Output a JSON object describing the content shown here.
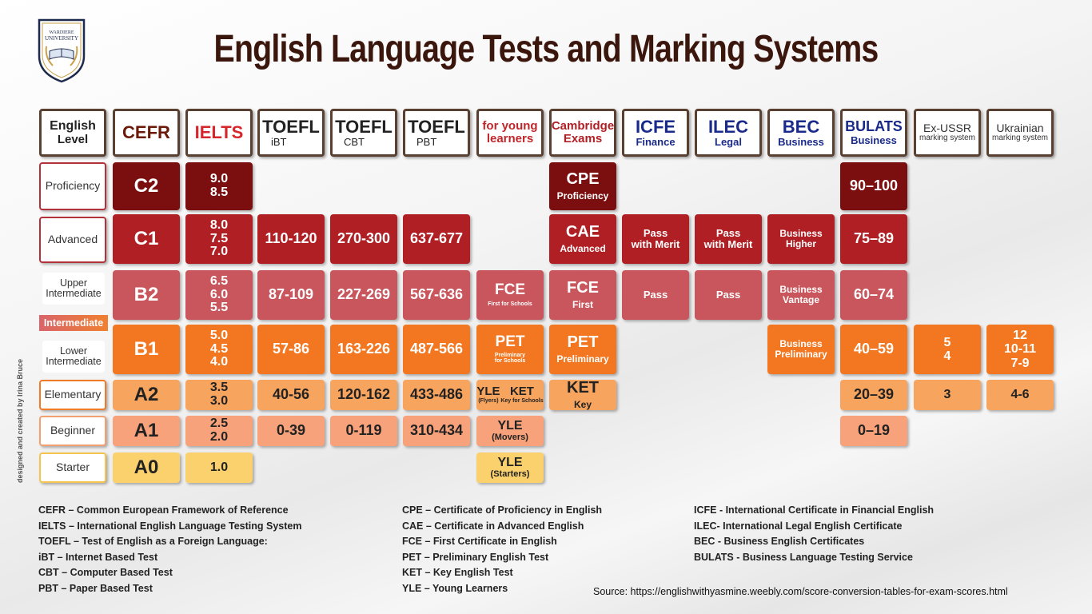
{
  "title": "English Language Tests and Marking Systems",
  "logo": {
    "line1": "WARDIERE",
    "line2": "UNIVERSITY"
  },
  "credit": "designed and created by Irina Bruce",
  "headers": [
    {
      "main": "English",
      "sub": "Level",
      "color": "#222222"
    },
    {
      "main": "CEFR",
      "sub": "",
      "color": "#6b1a0a"
    },
    {
      "main": "IELTS",
      "sub": "",
      "color": "#d6252b"
    },
    {
      "main": "TOEFL",
      "sub": "iBT",
      "color": "#222222"
    },
    {
      "main": "TOEFL",
      "sub": "CBT",
      "color": "#222222"
    },
    {
      "main": "TOEFL",
      "sub": "PBT",
      "color": "#222222"
    },
    {
      "main": "for young",
      "sub": "learners",
      "color": "#c0262a"
    },
    {
      "main": "Cambridge",
      "sub": "Exams",
      "color": "#b01f23"
    },
    {
      "main": "ICFE",
      "sub": "Finance",
      "color": "#1a2a8a"
    },
    {
      "main": "ILEC",
      "sub": "Legal",
      "color": "#1a2a8a"
    },
    {
      "main": "BEC",
      "sub": "Business",
      "color": "#1a2a8a"
    },
    {
      "main": "BULATS",
      "sub": "Business",
      "color": "#1a2a8a"
    },
    {
      "main": "Ex-USSR",
      "sub": "marking system",
      "color": "#333333"
    },
    {
      "main": "Ukrainian",
      "sub": "marking system",
      "color": "#333333"
    }
  ],
  "levels": {
    "proficiency": "Proficiency",
    "advanced": "Advanced",
    "upper": "Upper Intermediate",
    "intermediate": "Intermediate",
    "lower": "Lower Intermediate",
    "elementary": "Elementary",
    "beginner": "Beginner",
    "starter": "Starter"
  },
  "cefr": {
    "c2": "C2",
    "c1": "C1",
    "b2": "B2",
    "b1": "B1",
    "a2": "A2",
    "a1": "A1",
    "a0": "A0"
  },
  "ielts": {
    "c2": "9.0 8.5",
    "c1": "8.0 7.5 7.0",
    "b2": "6.5 6.0 5.5",
    "b1": "5.0 4.5 4.0",
    "a2": "3.5 3.0",
    "a1": "2.5 2.0",
    "a0": "1.0"
  },
  "toefl_ibt": {
    "c1": "110-120",
    "b2": "87-109",
    "b1": "57-86",
    "a2": "40-56",
    "a1": "0-39"
  },
  "toefl_cbt": {
    "c1": "270-300",
    "b2": "227-269",
    "b1": "163-226",
    "a2": "120-162",
    "a1": "0-119"
  },
  "toefl_pbt": {
    "c1": "637-677",
    "b2": "567-636",
    "b1": "487-566",
    "a2": "433-486",
    "a1": "310-434"
  },
  "young": {
    "fce": {
      "main": "FCE",
      "sub": "First for Schools"
    },
    "pet": {
      "main": "PET",
      "sub": "Preliminary for Schools"
    },
    "a2": {
      "yle": "YLE",
      "ket": "KET",
      "yle_sub": "(Flyers)",
      "ket_sub": "Key for Schools"
    },
    "a1": {
      "main": "YLE",
      "sub": "(Movers)"
    },
    "a0": {
      "main": "YLE",
      "sub": "(Starters)"
    }
  },
  "cambridge": {
    "c2": {
      "main": "CPE",
      "sub": "Proficiency"
    },
    "c1": {
      "main": "CAE",
      "sub": "Advanced"
    },
    "b2": {
      "main": "FCE",
      "sub": "First"
    },
    "b1": {
      "main": "PET",
      "sub": "Preliminary"
    },
    "a2": {
      "main": "KET",
      "sub": "Key"
    }
  },
  "icfe": {
    "c1": "Pass with Merit",
    "b2": "Pass"
  },
  "ilec": {
    "c1": "Pass with Merit",
    "b2": "Pass"
  },
  "bec": {
    "c1": "Business Higher",
    "b2": "Business Vantage",
    "b1": "Business Preliminary"
  },
  "bulats": {
    "c2": "90–100",
    "c1": "75–89",
    "b2": "60–74",
    "b1": "40–59",
    "a2": "20–39",
    "a1": "0–19"
  },
  "ussr": {
    "b1": "5 4",
    "a2": "3"
  },
  "ukraine": {
    "b1": "12 10-11 7-9",
    "a2": "4-6"
  },
  "legend": {
    "col1": [
      "CEFR – Common European Framework of Reference",
      "IELTS – International English Language Testing System",
      "TOEFL – Test of English as a Foreign Language:",
      "iBT – Internet Based Test",
      "CBT – Computer Based Test",
      "PBT – Paper Based Test"
    ],
    "col2": [
      "CPE – Certificate of Proficiency in English",
      "CAE – Certificate in Advanced English",
      "FCE – First Certificate in English",
      "PET – Preliminary English Test",
      "KET – Key English Test",
      "YLE – Young Learners"
    ],
    "col3": [
      "ICFE - International Certificate in Financial English",
      "ILEC- International Legal English Certificate",
      "BEC - Business English Certificates",
      "BULATS - Business Language Testing Service"
    ]
  },
  "source": "Source: https://englishwithyasmine.weebly.com/score-conversion-tables-for-exam-scores.html",
  "colors": {
    "dark_red": "#7b0f0f",
    "red": "#b01f23",
    "rose": "#c8565c",
    "orange": "#f27720",
    "light_orange": "#f7a45f",
    "peach": "#f7a27a",
    "yellow": "#fbd16e"
  }
}
